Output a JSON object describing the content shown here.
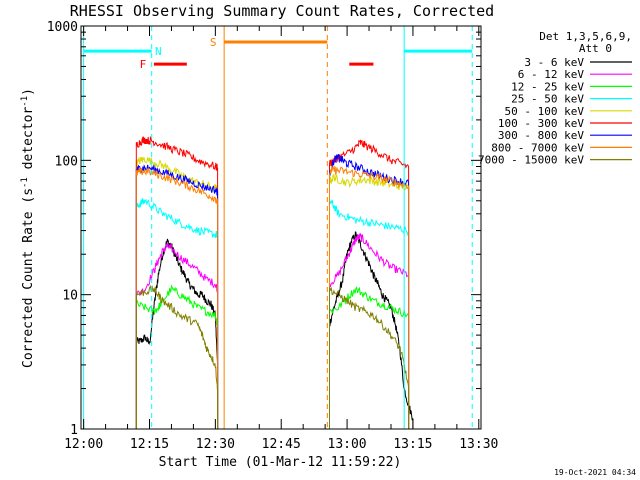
{
  "chart_data": {
    "type": "line",
    "title": "RHESSI Observing Summary Count Rates, Corrected",
    "xlabel": "Start Time (01-Mar-12 11:59:22)",
    "ylabel": "Corrected Count Rate (s⁻¹ detector⁻¹)",
    "ylabel_main": "Corrected Count Rate (s",
    "ylabel_sup1": "-1",
    "ylabel_mid": " detector",
    "ylabel_sup2": "-1",
    "ylabel_end": ")",
    "yscale": "log",
    "ylim": [
      1,
      1000
    ],
    "xlim_minutes": [
      -0.6,
      90.5
    ],
    "x_ticks": [
      "12:00",
      "12:15",
      "12:30",
      "12:45",
      "13:00",
      "13:15",
      "13:30"
    ],
    "y_ticks": [
      "1",
      "10",
      "100",
      "1000"
    ],
    "footer_date": "19-Oct-2021 04:34",
    "legend": {
      "title_line1": "Det 1,3,5,6,9,",
      "title_line2": "Att 0",
      "placement": "right"
    },
    "series": [
      {
        "name": "3 - 6 keV",
        "color": "#000000",
        "segments": [
          {
            "x": [
              12.0,
              13.0,
              14.0,
              15.0,
              16.0,
              17.0,
              18.0,
              19.0,
              20.0,
              21.0,
              22.0,
              23.0,
              24.0,
              25.0,
              26.0,
              27.0,
              28.0,
              29.0,
              30.0,
              30.5
            ],
            "y": [
              4.5,
              4.5,
              4.8,
              4.3,
              8.0,
              14,
              20,
              25,
              23,
              19,
              16,
              14,
              12,
              11,
              10,
              10,
              9,
              8.5,
              7,
              3
            ]
          },
          {
            "x": [
              56.0,
              57.0,
              58.0,
              59.0,
              60.0,
              61.0,
              62.0,
              63.0,
              64.0,
              65.0,
              66.0,
              67.0,
              68.0,
              69.0,
              70.0,
              71.0,
              72.0,
              73.0,
              74.0,
              75.0
            ],
            "y": [
              6,
              8,
              10,
              13,
              20,
              25,
              28,
              24,
              20,
              17,
              14,
              12,
              10,
              9,
              8,
              6,
              4,
              2,
              1.5,
              1.2
            ]
          }
        ]
      },
      {
        "name": "6 - 12 keV",
        "color": "#ff00ff",
        "segments": [
          {
            "x": [
              12.0,
              14.0,
              16.0,
              17.0,
              18.0,
              19.0,
              20.0,
              22.0,
              24.0,
              26.0,
              28.0,
              30.0,
              30.5
            ],
            "y": [
              10,
              11,
              15,
              18,
              21,
              23,
              22,
              19,
              17,
              15,
              13,
              12,
              11
            ]
          },
          {
            "x": [
              56.0,
              58.0,
              60.0,
              61.0,
              62.0,
              63.0,
              64.0,
              66.0,
              68.0,
              70.0,
              72.0,
              74.0
            ],
            "y": [
              12,
              14,
              19,
              22,
              26,
              27,
              25,
              21,
              18,
              16,
              15,
              14
            ]
          }
        ]
      },
      {
        "name": "12 - 25 keV",
        "color": "#00ff00",
        "segments": [
          {
            "x": [
              12.0,
              14.0,
              16.0,
              17.0,
              18.0,
              20.0,
              22.0,
              24.0,
              26.0,
              28.0,
              30.0,
              30.5
            ],
            "y": [
              8.5,
              8.0,
              7.5,
              8,
              9,
              11,
              10,
              9,
              8,
              7.5,
              7,
              6
            ]
          },
          {
            "x": [
              56.0,
              58.0,
              60.0,
              62.0,
              64.0,
              66.0,
              68.0,
              70.0,
              72.0,
              74.0
            ],
            "y": [
              7.5,
              8,
              9.5,
              11,
              10,
              9,
              8.5,
              8,
              7.5,
              7
            ]
          }
        ]
      },
      {
        "name": "25 - 50 keV",
        "color": "#00ffff",
        "segments": [
          {
            "x": [
              12.0,
              13.0,
              14.0,
              16.0,
              18.0,
              20.0,
              22.0,
              24.0,
              26.0,
              28.0,
              30.0,
              30.5
            ],
            "y": [
              45,
              48,
              50,
              45,
              40,
              37,
              34,
              32,
              30,
              29,
              28,
              28
            ]
          },
          {
            "x": [
              56.0,
              57.0,
              58.0,
              60.0,
              62.0,
              64.0,
              66.0,
              68.0,
              70.0,
              72.0,
              74.0
            ],
            "y": [
              50,
              46,
              40,
              38,
              36,
              35,
              34,
              33,
              32,
              31,
              30
            ]
          }
        ]
      },
      {
        "name": "50 - 100 keV",
        "color": "#d8d800",
        "segments": [
          {
            "x": [
              12.0,
              13.0,
              14.0,
              16.0,
              18.0,
              20.0,
              22.0,
              24.0,
              26.0,
              28.0,
              30.0,
              30.5
            ],
            "y": [
              95,
              100,
              102,
              97,
              92,
              85,
              78,
              72,
              68,
              65,
              62,
              60
            ]
          },
          {
            "x": [
              56.0,
              57.0,
              58.0,
              60.0,
              62.0,
              64.0,
              66.0,
              68.0,
              70.0,
              72.0,
              74.0
            ],
            "y": [
              70,
              75,
              72,
              68,
              70,
              72,
              70,
              68,
              66,
              64,
              62
            ]
          }
        ]
      },
      {
        "name": "100 - 300 keV",
        "color": "#ff0000",
        "segments": [
          {
            "x": [
              12.0,
              13.0,
              14.0,
              15.0,
              16.0,
              18.0,
              20.0,
              22.0,
              24.0,
              26.0,
              28.0,
              30.0,
              30.5
            ],
            "y": [
              130,
              138,
              142,
              140,
              138,
              130,
              122,
              115,
              108,
              100,
              95,
              90,
              88
            ]
          },
          {
            "x": [
              56.0,
              57.0,
              58.0,
              60.0,
              62.0,
              63.0,
              64.0,
              66.0,
              68.0,
              70.0,
              72.0,
              74.0
            ],
            "y": [
              95,
              100,
              105,
              112,
              125,
              135,
              130,
              120,
              110,
              100,
              95,
              90
            ]
          }
        ]
      },
      {
        "name": "300 - 800 keV",
        "color": "#0000ff",
        "segments": [
          {
            "x": [
              12.0,
              13.0,
              14.0,
              16.0,
              18.0,
              20.0,
              22.0,
              24.0,
              26.0,
              28.0,
              30.0,
              30.5
            ],
            "y": [
              85,
              87,
              88,
              86,
              82,
              78,
              74,
              70,
              66,
              63,
              60,
              58
            ]
          },
          {
            "x": [
              56.0,
              57.0,
              58.0,
              59.0,
              60.0,
              62.0,
              64.0,
              66.0,
              68.0,
              70.0,
              72.0,
              74.0
            ],
            "y": [
              80,
              100,
              105,
              100,
              95,
              90,
              85,
              80,
              76,
              72,
              70,
              68
            ]
          }
        ]
      },
      {
        "name": "800 - 7000 keV",
        "color": "#ff8000",
        "segments": [
          {
            "x": [
              12.0,
              13.0,
              14.0,
              16.0,
              18.0,
              20.0,
              22.0,
              24.0,
              26.0,
              28.0,
              30.0,
              30.5
            ],
            "y": [
              80,
              82,
              83,
              80,
              76,
              72,
              68,
              64,
              60,
              56,
              52,
              48
            ]
          },
          {
            "x": [
              56.0,
              57.0,
              58.0,
              60.0,
              62.0,
              64.0,
              66.0,
              68.0,
              70.0,
              72.0,
              74.0
            ],
            "y": [
              82,
              85,
              84,
              82,
              80,
              78,
              76,
              73,
              70,
              67,
              65
            ]
          }
        ]
      },
      {
        "name": "7000 - 15000 keV",
        "color": "#808000",
        "segments": [
          {
            "x": [
              12.0,
              14.0,
              16.0,
              17.0,
              18.0,
              20.0,
              22.0,
              24.0,
              26.0,
              27.0,
              28.0,
              29.0,
              30.0,
              30.5
            ],
            "y": [
              10,
              10.5,
              11,
              10,
              9,
              8,
              7,
              6.5,
              6,
              5,
              4,
              3.5,
              3,
              2
            ]
          },
          {
            "x": [
              56.0,
              58.0,
              60.0,
              62.0,
              64.0,
              66.0,
              68.0,
              70.0,
              72.0,
              73.0,
              74.0
            ],
            "y": [
              11,
              10,
              9,
              8,
              7.5,
              7,
              6,
              5,
              4,
              3,
              2
            ]
          }
        ]
      }
    ],
    "state_markers": {
      "night": {
        "label": "N",
        "color": "#00ffff",
        "bars": [
          {
            "x": [
              0.0,
              15.5
            ],
            "y": 650
          },
          {
            "x": [
              73.0,
              88.5
            ],
            "y": 650
          }
        ],
        "edges_solid": [
          0.0,
          73.0
        ],
        "edges_dashed": [
          15.5,
          88.5
        ],
        "label_x": 17.0,
        "label_y": 650
      },
      "flare": {
        "label": "F",
        "color": "#ff0000",
        "bars": [
          {
            "x": [
              16.0,
              23.5
            ],
            "y": 520
          },
          {
            "x": [
              60.5,
              66.0
            ],
            "y": 520
          }
        ],
        "label_x": 13.5,
        "label_y": 520
      },
      "saa": {
        "label": "S",
        "color": "#ff8000",
        "bars": [
          {
            "x": [
              32.0,
              55.5
            ],
            "y": 760
          }
        ],
        "edges_solid": [
          32.0
        ],
        "edges_dashed": [
          55.5
        ],
        "label_x": 29.5,
        "label_y": 760
      }
    }
  }
}
